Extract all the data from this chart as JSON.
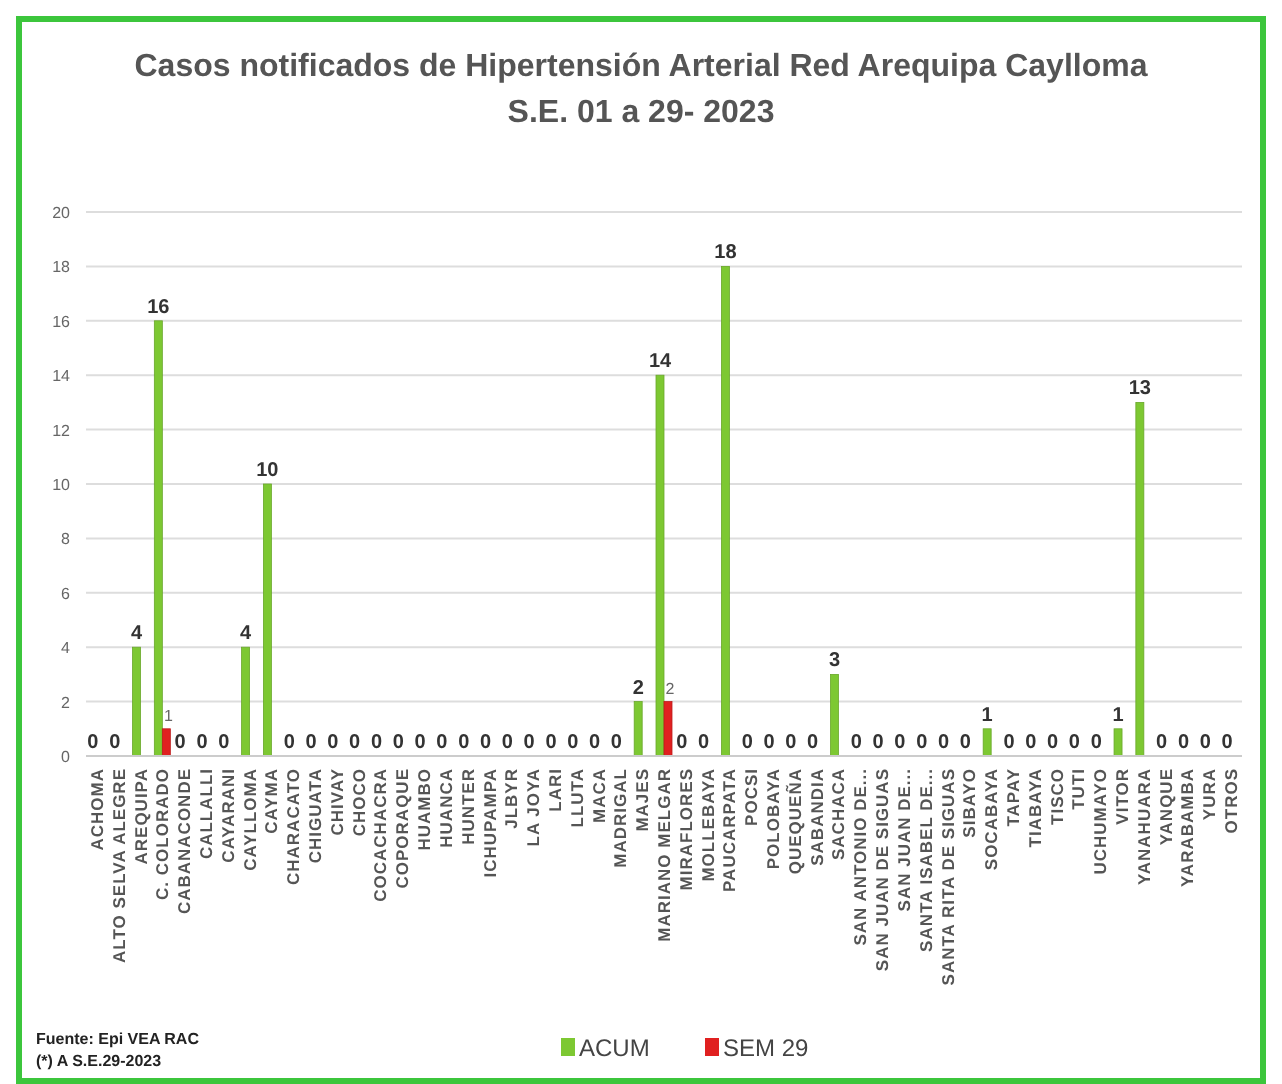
{
  "chart_data": {
    "type": "bar",
    "title": "Casos notificados de Hipertensión Arterial Red Arequipa  Caylloma",
    "subtitle": "S.E. 01 a 29- 2023",
    "categories": [
      "ACHOMA",
      "ALTO SELVA ALEGRE",
      "AREQUIPA",
      "C. COLORADO",
      "CABANACONDE",
      "CALLALLI",
      "CAYARANI",
      "CAYLLOMA",
      "CAYMA",
      "CHARACATO",
      "CHIGUATA",
      "CHIVAY",
      "CHOCO",
      "COCACHACRA",
      "COPORAQUE",
      "HUAMBO",
      "HUANCA",
      "HUNTER",
      "ICHUPAMPA",
      "JLBYR",
      "LA JOYA",
      "LARI",
      "LLUTA",
      "MACA",
      "MADRIGAL",
      "MAJES",
      "MARIANO MELGAR",
      "MIRAFLORES",
      "MOLLEBAYA",
      "PAUCARPATA",
      "POCSI",
      "POLOBAYA",
      "QUEQUEÑA",
      "SABANDIA",
      "SACHACA",
      "SAN ANTONIO DE...",
      "SAN JUAN DE SIGUAS",
      "SAN JUAN DE...",
      "SANTA ISABEL DE...",
      "SANTA RITA DE SIGUAS",
      "SIBAYO",
      "SOCABAYA",
      "TAPAY",
      "TIABAYA",
      "TISCO",
      "TUTI",
      "UCHUMAYO",
      "VITOR",
      "YANAHUARA",
      "YANQUE",
      "YARABAMBA",
      "YURA",
      "OTROS"
    ],
    "series": [
      {
        "name": "ACUM",
        "color": "#7dc832",
        "values": [
          0,
          0,
          4,
          16,
          0,
          0,
          0,
          4,
          10,
          0,
          0,
          0,
          0,
          0,
          0,
          0,
          0,
          0,
          0,
          0,
          0,
          0,
          0,
          0,
          0,
          2,
          14,
          0,
          0,
          18,
          0,
          0,
          0,
          0,
          3,
          0,
          0,
          0,
          0,
          0,
          0,
          1,
          0,
          0,
          0,
          0,
          0,
          1,
          13,
          0,
          0,
          0,
          0
        ]
      },
      {
        "name": "SEM 29",
        "color": "#e02020",
        "values": [
          null,
          null,
          null,
          1,
          null,
          null,
          null,
          null,
          null,
          null,
          null,
          null,
          null,
          null,
          null,
          null,
          null,
          null,
          null,
          null,
          null,
          null,
          null,
          null,
          null,
          null,
          2,
          null,
          null,
          null,
          null,
          null,
          null,
          null,
          null,
          null,
          null,
          null,
          null,
          null,
          null,
          null,
          null,
          null,
          null,
          null,
          null,
          null,
          null,
          null,
          null,
          null,
          null
        ]
      }
    ],
    "ylim": [
      0,
      20
    ],
    "yticks": [
      0,
      2,
      4,
      6,
      8,
      10,
      12,
      14,
      16,
      18,
      20
    ],
    "grid": "y",
    "legend": "bottom",
    "data_labels": true,
    "annotations": [
      "Fuente: Epi VEA RAC",
      "(*) A S.E.29-2023"
    ]
  }
}
